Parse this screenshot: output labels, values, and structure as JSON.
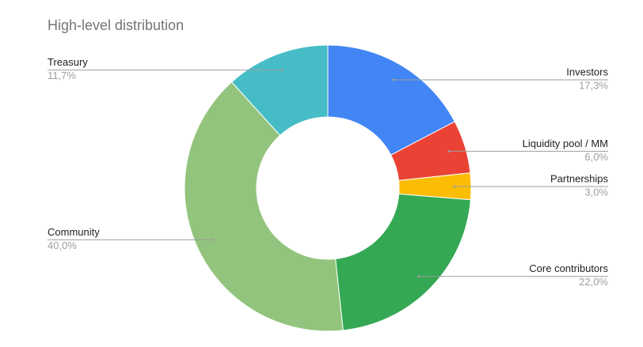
{
  "chart_data": {
    "type": "donut",
    "title": "High-level distribution",
    "categories": [
      "Investors",
      "Liquidity pool / MM",
      "Partnerships",
      "Core contributors",
      "Community",
      "Treasury"
    ],
    "values": [
      17.3,
      6.0,
      3.0,
      22.0,
      40.0,
      11.7
    ],
    "value_labels": [
      "17,3%",
      "6,0%",
      "3,0%",
      "22,0%",
      "40,0%",
      "11,7%"
    ],
    "colors": [
      "#4285f4",
      "#ea4335",
      "#fbbc04",
      "#34a853",
      "#93c47d",
      "#46bdc6"
    ]
  }
}
